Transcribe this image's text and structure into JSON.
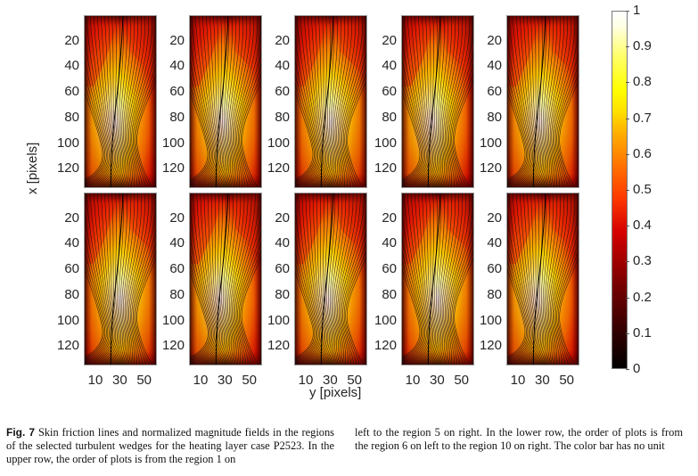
{
  "figure": {
    "label": "Fig. 7",
    "caption_left": "Skin friction lines and normalized magnitude fields in the regions of the selected turbulent wedges for the heating layer case P2523. In the upper row, the order of plots is from the region 1 on",
    "caption_right": "left to the region 5 on right. In the lower row, the order of plots is from the region 6 on left to the region 10 on right. The color bar has no unit"
  },
  "chart_data": {
    "type": "heatmap",
    "title": "",
    "xlabel": "y [pixels]",
    "ylabel": "x [pixels]",
    "layout": "2 rows x 5 columns",
    "panels": [
      {
        "region": 1,
        "row": "upper"
      },
      {
        "region": 2,
        "row": "upper"
      },
      {
        "region": 3,
        "row": "upper"
      },
      {
        "region": 4,
        "row": "upper"
      },
      {
        "region": 5,
        "row": "upper"
      },
      {
        "region": 6,
        "row": "lower"
      },
      {
        "region": 7,
        "row": "lower"
      },
      {
        "region": 8,
        "row": "lower"
      },
      {
        "region": 9,
        "row": "lower"
      },
      {
        "region": 10,
        "row": "lower"
      }
    ],
    "x_ticks": [
      "10",
      "30",
      "50"
    ],
    "y_ticks": [
      "20",
      "40",
      "60",
      "80",
      "100",
      "120"
    ],
    "x_range": [
      0,
      60
    ],
    "y_range": [
      0,
      135
    ],
    "overlay": "skin friction lines (streamlines)",
    "colorbar": {
      "range": [
        0,
        1
      ],
      "ticks": [
        "0",
        "0.1",
        "0.2",
        "0.3",
        "0.4",
        "0.5",
        "0.6",
        "0.7",
        "0.8",
        "0.9",
        "1"
      ],
      "colormap": "hot",
      "unit": ""
    }
  }
}
